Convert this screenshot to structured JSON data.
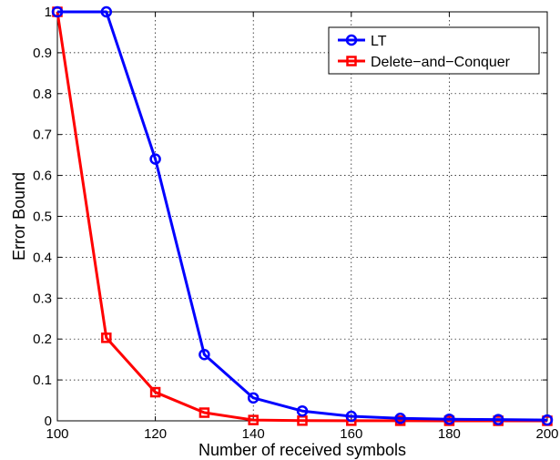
{
  "chart_data": {
    "type": "line",
    "title": "",
    "xlabel": "Number of received symbols",
    "ylabel": "Error Bound",
    "xlim": [
      100,
      200
    ],
    "ylim": [
      0,
      1
    ],
    "xticks": [
      "100",
      "120",
      "140",
      "160",
      "180",
      "200"
    ],
    "xtick_values": [
      100,
      120,
      140,
      160,
      180,
      200
    ],
    "yticks": [
      "0",
      "0.1",
      "0.2",
      "0.3",
      "0.4",
      "0.5",
      "0.6",
      "0.7",
      "0.8",
      "0.9",
      "1"
    ],
    "ytick_values": [
      0,
      0.1,
      0.2,
      0.3,
      0.4,
      0.5,
      0.6,
      0.7,
      0.8,
      0.9,
      1
    ],
    "grid": true,
    "legend_position": "top-right",
    "x": [
      100,
      110,
      120,
      130,
      140,
      150,
      160,
      170,
      180,
      190,
      200
    ],
    "series": [
      {
        "name": "LT",
        "color": "#0000ff",
        "marker": "circle",
        "values": [
          1.0,
          1.0,
          0.64,
          0.162,
          0.056,
          0.024,
          0.011,
          0.006,
          0.004,
          0.003,
          0.002
        ]
      },
      {
        "name": "Delete−and−Conquer",
        "color": "#ff0000",
        "marker": "square",
        "values": [
          1.0,
          0.203,
          0.07,
          0.02,
          0.002,
          0.0005,
          0.0003,
          0.0002,
          0.0001,
          0.0001,
          0.0001
        ]
      }
    ]
  }
}
